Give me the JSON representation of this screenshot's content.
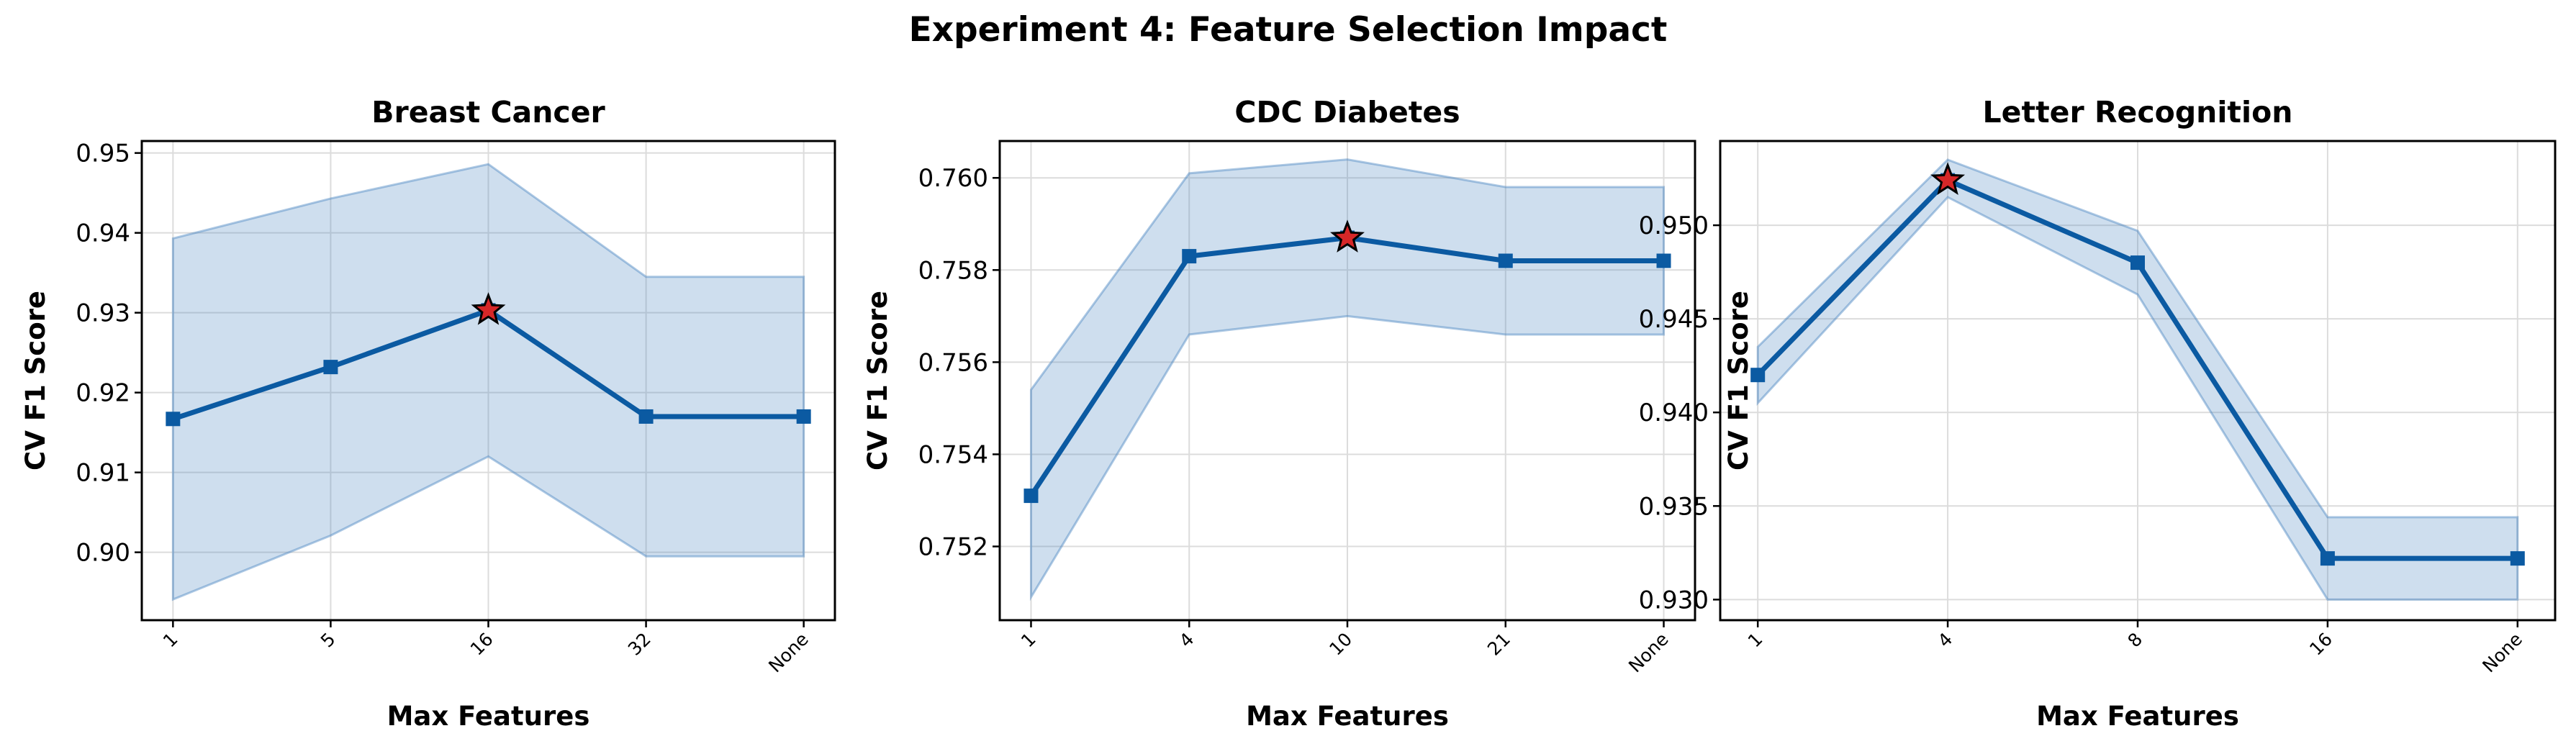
{
  "figure": {
    "title": "Experiment 4: Feature Selection Impact",
    "line_color": "#0b5aa2",
    "band_color": "#4a86c1",
    "best_marker_color": "#d62728"
  },
  "chart_data": [
    {
      "type": "line",
      "title": "Breast Cancer",
      "xlabel": "Max Features",
      "ylabel": "CV F1 Score",
      "categories": [
        "1",
        "5",
        "16",
        "32",
        "None"
      ],
      "values": [
        0.9167,
        0.9232,
        0.9303,
        0.917,
        0.917
      ],
      "band_upper": [
        0.9393,
        0.9443,
        0.9486,
        0.9345,
        0.9345
      ],
      "band_lower": [
        0.8941,
        0.9021,
        0.912,
        0.8995,
        0.8995
      ],
      "best_index": 2,
      "ylim": [
        0.8915,
        0.9515
      ],
      "yticks": [
        0.9,
        0.91,
        0.92,
        0.93,
        0.94,
        0.95
      ],
      "ytick_labels": [
        "0.90",
        "0.91",
        "0.92",
        "0.93",
        "0.94",
        "0.95"
      ],
      "grid": true
    },
    {
      "type": "line",
      "title": "CDC Diabetes",
      "xlabel": "Max Features",
      "ylabel": "CV F1 Score",
      "categories": [
        "1",
        "4",
        "10",
        "21",
        "None"
      ],
      "values": [
        0.7531,
        0.7583,
        0.7587,
        0.7582,
        0.7582
      ],
      "band_upper": [
        0.7554,
        0.7601,
        0.7604,
        0.7598,
        0.7598
      ],
      "band_lower": [
        0.7509,
        0.7566,
        0.757,
        0.7566,
        0.7566
      ],
      "best_index": 2,
      "ylim": [
        0.7504,
        0.7608
      ],
      "yticks": [
        0.752,
        0.754,
        0.756,
        0.758,
        0.76
      ],
      "ytick_labels": [
        "0.752",
        "0.754",
        "0.756",
        "0.758",
        "0.760"
      ],
      "grid": true
    },
    {
      "type": "line",
      "title": "Letter Recognition",
      "xlabel": "Max Features",
      "ylabel": "CV F1 Score",
      "categories": [
        "1",
        "4",
        "8",
        "16",
        "None"
      ],
      "values": [
        0.942,
        0.9524,
        0.948,
        0.9322,
        0.9322
      ],
      "band_upper": [
        0.9435,
        0.9535,
        0.9497,
        0.9344,
        0.9344
      ],
      "band_lower": [
        0.9405,
        0.9515,
        0.9463,
        0.93,
        0.93
      ],
      "best_index": 1,
      "ylim": [
        0.9289,
        0.9545
      ],
      "yticks": [
        0.93,
        0.935,
        0.94,
        0.945,
        0.95
      ],
      "ytick_labels": [
        "0.930",
        "0.935",
        "0.940",
        "0.945",
        "0.950"
      ],
      "grid": true
    }
  ]
}
